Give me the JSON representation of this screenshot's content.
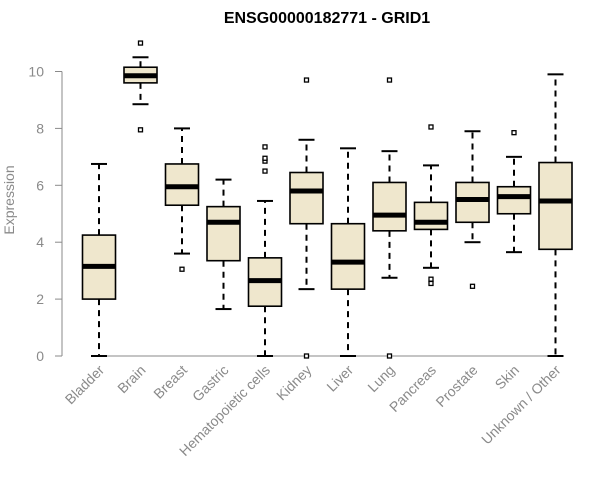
{
  "chart_data": {
    "type": "boxplot",
    "title": "ENSG00000182771 - GRID1",
    "xlabel": "",
    "ylabel": "Expression",
    "ylim": [
      0,
      11
    ],
    "yticks": [
      0,
      2,
      4,
      6,
      8,
      10
    ],
    "categories": [
      "Bladder",
      "Brain",
      "Breast",
      "Gastric",
      "Hematopoietic cells",
      "Kidney",
      "Liver",
      "Lung",
      "Pancreas",
      "Prostate",
      "Skin",
      "Unknown / Other"
    ],
    "boxes": [
      {
        "name": "Bladder",
        "whisker_low": 0.0,
        "q1": 2.0,
        "median": 3.15,
        "q3": 4.25,
        "whisker_high": 6.75,
        "outliers": []
      },
      {
        "name": "Brain",
        "whisker_low": 8.85,
        "q1": 9.6,
        "median": 9.85,
        "q3": 10.15,
        "whisker_high": 10.5,
        "outliers": [
          11.0,
          7.95
        ]
      },
      {
        "name": "Breast",
        "whisker_low": 3.6,
        "q1": 5.3,
        "median": 5.95,
        "q3": 6.75,
        "whisker_high": 8.0,
        "outliers": [
          3.05
        ]
      },
      {
        "name": "Gastric",
        "whisker_low": 1.65,
        "q1": 3.35,
        "median": 4.7,
        "q3": 5.25,
        "whisker_high": 6.2,
        "outliers": []
      },
      {
        "name": "Hematopoietic cells",
        "whisker_low": 0.0,
        "q1": 1.75,
        "median": 2.65,
        "q3": 3.45,
        "whisker_high": 5.45,
        "outliers": [
          6.5,
          6.85,
          6.95,
          7.35
        ]
      },
      {
        "name": "Kidney",
        "whisker_low": 2.35,
        "q1": 4.65,
        "median": 5.8,
        "q3": 6.45,
        "whisker_high": 7.6,
        "outliers": [
          9.7,
          0.0
        ]
      },
      {
        "name": "Liver",
        "whisker_low": 0.0,
        "q1": 2.35,
        "median": 3.3,
        "q3": 4.65,
        "whisker_high": 7.3,
        "outliers": []
      },
      {
        "name": "Lung",
        "whisker_low": 2.75,
        "q1": 4.4,
        "median": 4.95,
        "q3": 6.1,
        "whisker_high": 7.2,
        "outliers": [
          9.7,
          0.0
        ]
      },
      {
        "name": "Pancreas",
        "whisker_low": 3.1,
        "q1": 4.45,
        "median": 4.7,
        "q3": 5.4,
        "whisker_high": 6.7,
        "outliers": [
          8.05,
          2.7,
          2.55
        ]
      },
      {
        "name": "Prostate",
        "whisker_low": 4.0,
        "q1": 4.7,
        "median": 5.5,
        "q3": 6.1,
        "whisker_high": 7.9,
        "outliers": [
          2.45
        ]
      },
      {
        "name": "Skin",
        "whisker_low": 3.65,
        "q1": 5.0,
        "median": 5.6,
        "q3": 5.95,
        "whisker_high": 7.0,
        "outliers": [
          7.85
        ]
      },
      {
        "name": "Unknown / Other",
        "whisker_low": 0.0,
        "q1": 3.75,
        "median": 5.45,
        "q3": 6.8,
        "whisker_high": 9.9,
        "outliers": []
      }
    ],
    "colors": {
      "box_fill": "#efe7cd",
      "stroke": "#000000",
      "axis": "#8a8a8a"
    },
    "grid": false
  }
}
